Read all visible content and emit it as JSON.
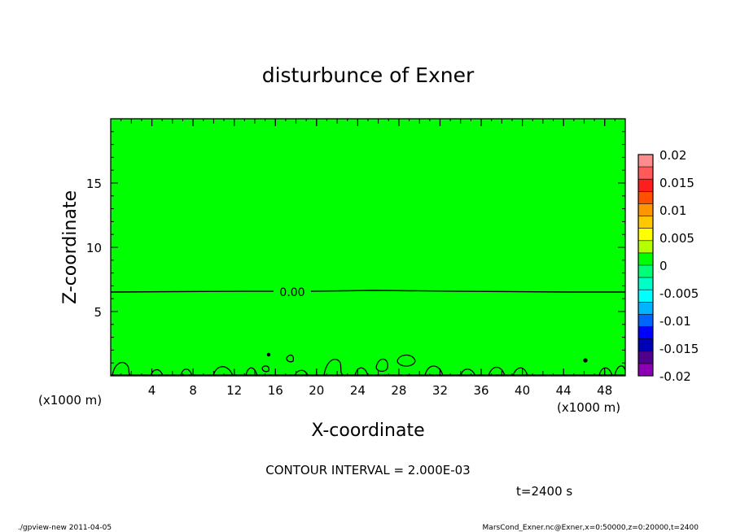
{
  "chart_data": {
    "type": "heatmap",
    "title": "disturbunce of Exner",
    "xlabel": "X-coordinate",
    "ylabel": "Z-coordinate",
    "x_unit_left": "(x1000 m)",
    "x_unit_right": "(x1000 m)",
    "xlim": [
      0,
      50
    ],
    "ylim": [
      0,
      20
    ],
    "x_ticks": [
      4,
      8,
      12,
      16,
      20,
      24,
      28,
      32,
      36,
      40,
      44,
      48
    ],
    "y_ticks": [
      5,
      10,
      15
    ],
    "contour_label": "0.00",
    "contour_interval_text": "CONTOUR INTERVAL = 2.000E-03",
    "time_text": "t=2400 s",
    "colorbar": {
      "min": -0.02,
      "max": 0.02,
      "tick_labels": [
        "0.02",
        "0.015",
        "0.01",
        "0.005",
        "0",
        "-0.005",
        "-0.01",
        "-0.015",
        "-0.02"
      ],
      "colors": [
        "#ff8c8c",
        "#ff5a5a",
        "#ff1e1e",
        "#ff5000",
        "#ff9600",
        "#ffc800",
        "#ffff00",
        "#b4ff00",
        "#00ff00",
        "#00ff78",
        "#00ffc8",
        "#00ffff",
        "#00b4ff",
        "#0064ff",
        "#0000ff",
        "#0000b4",
        "#50008c",
        "#8c00b4"
      ],
      "field_color": "#00ff00"
    }
  },
  "footer": {
    "left": "./gpview-new  2011-04-05",
    "right": "MarsCond_Exner.nc@Exner,x=0:50000,z=0:20000,t=2400"
  }
}
